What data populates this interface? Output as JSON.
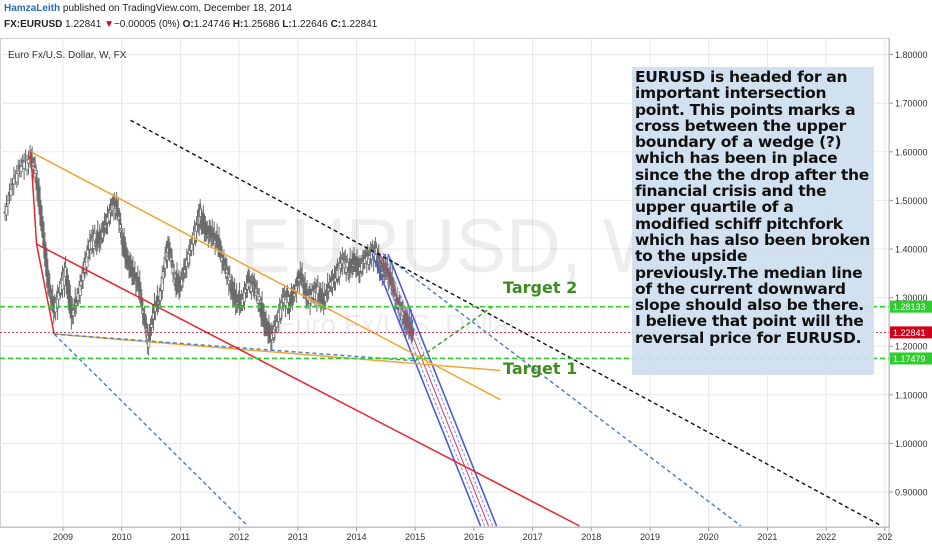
{
  "header": {
    "author": "HamzaLeith",
    "published": "published on TradingView.com, December 18, 2014",
    "symbol": "FX:EURUSD",
    "last": "1.22841",
    "arrow": "▼",
    "change": "−0.00005 (0%)",
    "o_label": "O:",
    "o": "1.24746",
    "h_label": "H:",
    "h": "1.25686",
    "l_label": "L:",
    "l": "1.22646",
    "c_label": "C:",
    "c": "1.22841"
  },
  "chart_title": "Euro Fx/U.S. Dollar, W, FX",
  "watermark": {
    "symbol": "EURUSD, W",
    "name": "Euro Fx/U.S. Dollar"
  },
  "annotation": "EURUSD is headed for an important intersection point. This points marks a cross between the upper boundary of a wedge (?) which has been in place since the the drop after the financial crisis  and the upper quartile of a modified schiff pitchfork which has also been broken to the upside previously.The median line of the current downward slope should also be there. I believe that point will the reversal price for EURUSD.",
  "colors": {
    "grid": "#e8e8e8",
    "candle": "#6b6b6b",
    "red": "#e8232c",
    "orange": "#f2a531",
    "blue_dash": "#4a86c9",
    "green": "#2ecc2e",
    "target_text": "#3d8c1e",
    "price_tag": "#d0021b",
    "channel": "#4e5bd6",
    "annot_bg": "#cfdfee"
  },
  "chart_data": {
    "type": "candlestick",
    "title": "Euro Fx/U.S. Dollar, W, FX",
    "x_ticks": [
      "2009",
      "2010",
      "2011",
      "2012",
      "2013",
      "2014",
      "2015",
      "2016",
      "2017",
      "2018",
      "2019",
      "2020",
      "2021",
      "2022",
      "202"
    ],
    "y_ticks": [
      "0.90000",
      "1.00000",
      "1.10000",
      "1.20000",
      "1.30000",
      "1.40000",
      "1.50000",
      "1.60000",
      "1.70000",
      "1.80000"
    ],
    "ylim": [
      0.82,
      1.82
    ],
    "price_tags": [
      {
        "label": "1.28133",
        "value": 1.28133,
        "color": "#2ecc2e"
      },
      {
        "label": "1.22841",
        "value": 1.22841,
        "color": "#d0021b"
      },
      {
        "label": "1.17479",
        "value": 1.17479,
        "color": "#2ecc2e"
      }
    ],
    "targets": [
      {
        "label": "Target 2",
        "value": 1.28133
      },
      {
        "label": "Target 1",
        "value": 1.17479
      }
    ],
    "closes": [
      {
        "x": 2008.0,
        "y": 1.47
      },
      {
        "x": 2008.15,
        "y": 1.54
      },
      {
        "x": 2008.3,
        "y": 1.57
      },
      {
        "x": 2008.45,
        "y": 1.58
      },
      {
        "x": 2008.55,
        "y": 1.55
      },
      {
        "x": 2008.65,
        "y": 1.45
      },
      {
        "x": 2008.75,
        "y": 1.33
      },
      {
        "x": 2008.85,
        "y": 1.27
      },
      {
        "x": 2008.95,
        "y": 1.31
      },
      {
        "x": 2009.05,
        "y": 1.35
      },
      {
        "x": 2009.15,
        "y": 1.27
      },
      {
        "x": 2009.25,
        "y": 1.3
      },
      {
        "x": 2009.35,
        "y": 1.35
      },
      {
        "x": 2009.45,
        "y": 1.4
      },
      {
        "x": 2009.55,
        "y": 1.42
      },
      {
        "x": 2009.65,
        "y": 1.43
      },
      {
        "x": 2009.75,
        "y": 1.46
      },
      {
        "x": 2009.85,
        "y": 1.49
      },
      {
        "x": 2009.92,
        "y": 1.48
      },
      {
        "x": 2010.0,
        "y": 1.43
      },
      {
        "x": 2010.1,
        "y": 1.38
      },
      {
        "x": 2010.2,
        "y": 1.35
      },
      {
        "x": 2010.3,
        "y": 1.32
      },
      {
        "x": 2010.4,
        "y": 1.24
      },
      {
        "x": 2010.45,
        "y": 1.21
      },
      {
        "x": 2010.55,
        "y": 1.28
      },
      {
        "x": 2010.65,
        "y": 1.3
      },
      {
        "x": 2010.75,
        "y": 1.38
      },
      {
        "x": 2010.8,
        "y": 1.4
      },
      {
        "x": 2010.9,
        "y": 1.34
      },
      {
        "x": 2011.0,
        "y": 1.33
      },
      {
        "x": 2011.1,
        "y": 1.37
      },
      {
        "x": 2011.2,
        "y": 1.41
      },
      {
        "x": 2011.3,
        "y": 1.45
      },
      {
        "x": 2011.35,
        "y": 1.47
      },
      {
        "x": 2011.45,
        "y": 1.44
      },
      {
        "x": 2011.55,
        "y": 1.43
      },
      {
        "x": 2011.65,
        "y": 1.41
      },
      {
        "x": 2011.75,
        "y": 1.36
      },
      {
        "x": 2011.85,
        "y": 1.33
      },
      {
        "x": 2011.95,
        "y": 1.3
      },
      {
        "x": 2012.05,
        "y": 1.29
      },
      {
        "x": 2012.15,
        "y": 1.33
      },
      {
        "x": 2012.25,
        "y": 1.32
      },
      {
        "x": 2012.35,
        "y": 1.29
      },
      {
        "x": 2012.45,
        "y": 1.25
      },
      {
        "x": 2012.55,
        "y": 1.22
      },
      {
        "x": 2012.65,
        "y": 1.25
      },
      {
        "x": 2012.75,
        "y": 1.29
      },
      {
        "x": 2012.85,
        "y": 1.29
      },
      {
        "x": 2012.95,
        "y": 1.32
      },
      {
        "x": 2013.05,
        "y": 1.35
      },
      {
        "x": 2013.15,
        "y": 1.3
      },
      {
        "x": 2013.25,
        "y": 1.3
      },
      {
        "x": 2013.35,
        "y": 1.31
      },
      {
        "x": 2013.45,
        "y": 1.3
      },
      {
        "x": 2013.55,
        "y": 1.33
      },
      {
        "x": 2013.65,
        "y": 1.34
      },
      {
        "x": 2013.75,
        "y": 1.37
      },
      {
        "x": 2013.85,
        "y": 1.36
      },
      {
        "x": 2013.95,
        "y": 1.38
      },
      {
        "x": 2014.05,
        "y": 1.36
      },
      {
        "x": 2014.15,
        "y": 1.38
      },
      {
        "x": 2014.25,
        "y": 1.38
      },
      {
        "x": 2014.35,
        "y": 1.39
      },
      {
        "x": 2014.42,
        "y": 1.36
      },
      {
        "x": 2014.5,
        "y": 1.36
      },
      {
        "x": 2014.6,
        "y": 1.33
      },
      {
        "x": 2014.7,
        "y": 1.28
      },
      {
        "x": 2014.8,
        "y": 1.26
      },
      {
        "x": 2014.9,
        "y": 1.25
      },
      {
        "x": 2014.96,
        "y": 1.228
      }
    ],
    "drawings": [
      {
        "name": "wedge-upper-line",
        "color": "#f2a531",
        "dash": false,
        "p1": [
          2008.45,
          1.6
        ],
        "p2": [
          2016.45,
          1.09
        ]
      },
      {
        "name": "wedge-lower-line",
        "color": "#f2a531",
        "dash": false,
        "p1": [
          2008.85,
          1.225
        ],
        "p2": [
          2016.45,
          1.15
        ]
      },
      {
        "name": "target-dashed-line",
        "color": "#4a86c9",
        "dash": true,
        "p1": [
          2008.85,
          1.225
        ],
        "p2": [
          2015.0,
          1.17
        ]
      },
      {
        "name": "pitchfork-median",
        "color": "#e8232c",
        "dash": false,
        "p1": [
          2008.55,
          1.41
        ],
        "p2": [
          2017.8,
          0.83
        ]
      },
      {
        "name": "pitchfork-lower",
        "color": "#4a86c9",
        "dash": true,
        "p1": [
          2008.85,
          1.225
        ],
        "p2": [
          2012.15,
          0.83
        ]
      },
      {
        "name": "pitchfork-upper-dashed",
        "color": "#4a86c9",
        "dash": true,
        "p1": [
          2014.45,
          1.39
        ],
        "p2": [
          2020.55,
          0.83
        ]
      },
      {
        "name": "black-trendline",
        "color": "#111111",
        "dash": true,
        "p1": [
          2010.15,
          1.665
        ],
        "p2": [
          2022.95,
          0.83
        ]
      },
      {
        "name": "green-projection",
        "color": "#3aa02a",
        "dash": true,
        "p1": [
          2015.0,
          1.17
        ],
        "p2": [
          2016.3,
          1.28
        ]
      }
    ]
  }
}
